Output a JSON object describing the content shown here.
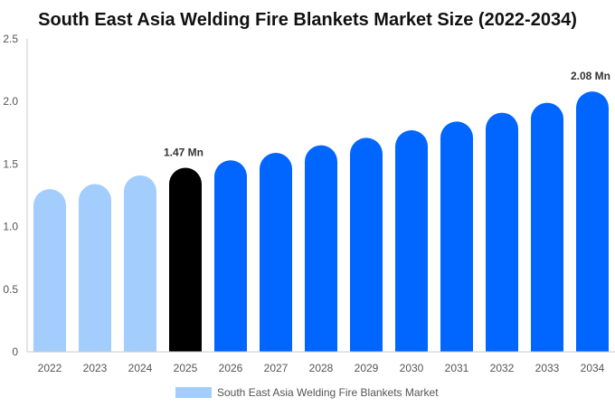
{
  "chart_data": {
    "type": "bar",
    "title": "South East Asia Welding Fire Blankets Market Size (2022-2034)",
    "categories": [
      "2022",
      "2023",
      "2024",
      "2025",
      "2026",
      "2027",
      "2028",
      "2029",
      "2030",
      "2031",
      "2032",
      "2033",
      "2034"
    ],
    "series": [
      {
        "name": "South East Asia Welding Fire Blankets Market",
        "values": [
          1.3,
          1.34,
          1.41,
          1.47,
          1.53,
          1.59,
          1.65,
          1.71,
          1.77,
          1.84,
          1.91,
          1.99,
          2.08
        ]
      }
    ],
    "ylim": [
      0,
      2.5
    ],
    "yticks": [
      "0",
      "0.5",
      "1.0",
      "1.5",
      "2.0",
      "2.5"
    ],
    "data_labels": [
      {
        "index": 3,
        "text": "1.47 Mn"
      },
      {
        "index": 12,
        "text": "2.08 Mn"
      }
    ],
    "colors": {
      "historic": "#a3cdfd",
      "current": "#000000",
      "forecast": "#0066ff",
      "axis": "#cccccc"
    },
    "historic_count": 3,
    "current_index": 3,
    "legend": {
      "position": "bottom-center"
    },
    "grid": false
  }
}
